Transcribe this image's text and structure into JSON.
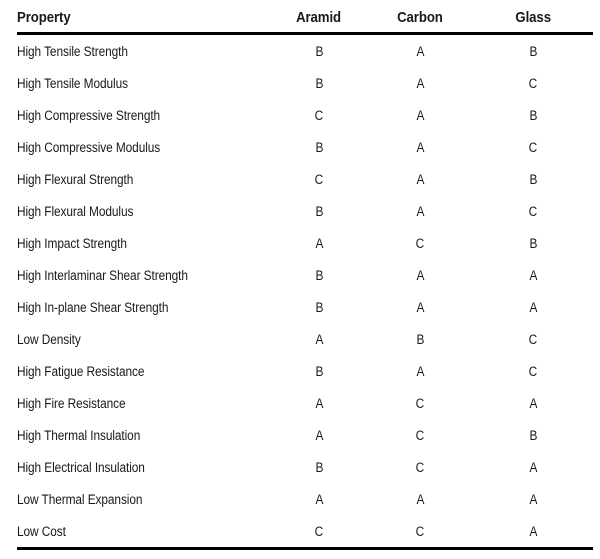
{
  "chart_data": {
    "type": "table",
    "columns": [
      "Property",
      "Aramid",
      "Carbon",
      "Glass"
    ],
    "rows": [
      [
        "High Tensile Strength",
        "B",
        "A",
        "B"
      ],
      [
        "High Tensile Modulus",
        "B",
        "A",
        "C"
      ],
      [
        "High Compressive Strength",
        "C",
        "A",
        "B"
      ],
      [
        "High Compressive Modulus",
        "B",
        "A",
        "C"
      ],
      [
        "High Flexural Strength",
        "C",
        "A",
        "B"
      ],
      [
        "High Flexural Modulus",
        "B",
        "A",
        "C"
      ],
      [
        "High Impact Strength",
        "A",
        "C",
        "B"
      ],
      [
        "High Interlaminar Shear Strength",
        "B",
        "A",
        "A"
      ],
      [
        "High In-plane Shear Strength",
        "B",
        "A",
        "A"
      ],
      [
        "Low Density",
        "A",
        "B",
        "C"
      ],
      [
        "High Fatigue Resistance",
        "B",
        "A",
        "C"
      ],
      [
        "High Fire Resistance",
        "A",
        "C",
        "A"
      ],
      [
        "High Thermal Insulation",
        "A",
        "C",
        "B"
      ],
      [
        "High Electrical Insulation",
        "B",
        "C",
        "A"
      ],
      [
        "Low Thermal Expansion",
        "A",
        "A",
        "A"
      ],
      [
        "Low Cost",
        "C",
        "C",
        "A"
      ]
    ]
  },
  "colors": {
    "background": "#ffffff",
    "text": "#1a1a1a",
    "rule": "#000000"
  }
}
